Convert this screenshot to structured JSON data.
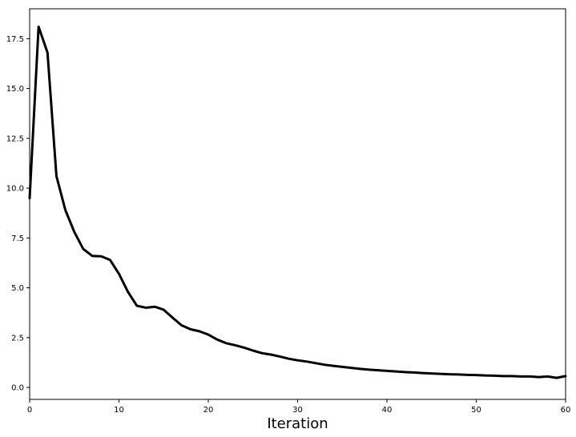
{
  "chart_data": {
    "type": "line",
    "title": "",
    "xlabel": "Iteration",
    "ylabel": "",
    "xlim": [
      0,
      60
    ],
    "ylim": [
      -0.6,
      19.0
    ],
    "x_ticks": [
      0,
      10,
      20,
      30,
      40,
      50,
      60
    ],
    "x_tick_labels": [
      "0",
      "10",
      "20",
      "30",
      "40",
      "50",
      "60"
    ],
    "y_ticks": [
      0,
      2.5,
      5,
      7.5,
      10,
      12.5,
      15,
      17.5
    ],
    "y_tick_labels": [
      "0.0",
      "2.5",
      "5.0",
      "7.5",
      "10.0",
      "12.5",
      "15.0",
      "17.5"
    ],
    "grid": false,
    "legend": "none",
    "series": [
      {
        "color": "#000000",
        "x": [
          0,
          1,
          2,
          3,
          4,
          5,
          6,
          7,
          8,
          9,
          10,
          11,
          12,
          13,
          14,
          15,
          16,
          17,
          18,
          19,
          20,
          21,
          22,
          23,
          24,
          25,
          26,
          27,
          28,
          29,
          30,
          31,
          32,
          33,
          34,
          35,
          36,
          37,
          38,
          39,
          40,
          41,
          42,
          43,
          44,
          45,
          46,
          47,
          48,
          49,
          50,
          51,
          52,
          53,
          54,
          55,
          56,
          57,
          58,
          59,
          60
        ],
        "values": [
          9.5,
          18.1,
          16.8,
          10.6,
          8.9,
          7.8,
          6.95,
          6.6,
          6.58,
          6.4,
          5.7,
          4.8,
          4.1,
          4.0,
          4.05,
          3.9,
          3.5,
          3.12,
          2.92,
          2.82,
          2.65,
          2.4,
          2.22,
          2.12,
          2.0,
          1.85,
          1.72,
          1.65,
          1.55,
          1.44,
          1.36,
          1.3,
          1.22,
          1.14,
          1.08,
          1.03,
          0.98,
          0.93,
          0.89,
          0.86,
          0.83,
          0.8,
          0.77,
          0.75,
          0.72,
          0.7,
          0.68,
          0.66,
          0.65,
          0.63,
          0.62,
          0.6,
          0.59,
          0.57,
          0.57,
          0.55,
          0.55,
          0.52,
          0.55,
          0.48,
          0.57
        ]
      }
    ]
  }
}
